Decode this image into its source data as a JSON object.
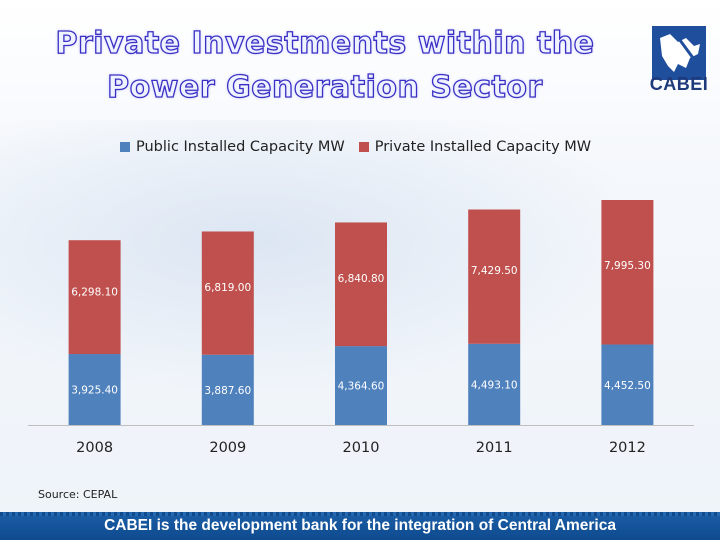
{
  "title": "Private Investments within the Power Generation Sector",
  "logo": {
    "text": "CABEI",
    "icon": "cabei-map-icon"
  },
  "colors": {
    "public": "#4f81bd",
    "private": "#c0504d",
    "title_outline": "#3b2fc4",
    "footer_bg": "#1b5fa8"
  },
  "source": "Source: CEPAL",
  "footer": "CABEI is the development bank for the integration of Central America",
  "chart_data": {
    "type": "bar",
    "stacked": true,
    "title": "",
    "xlabel": "",
    "ylabel": "",
    "grid": false,
    "legend_position": "top",
    "categories": [
      "2008",
      "2009",
      "2010",
      "2011",
      "2012"
    ],
    "series": [
      {
        "name": "Public Installed Capacity MW",
        "values": [
          3925.4,
          3887.6,
          4364.6,
          4493.1,
          4452.5
        ],
        "labels": [
          "3,925.40",
          "3,887.60",
          "4,364.60",
          "4,493.10",
          "4,452.50"
        ]
      },
      {
        "name": "Private Installed Capacity MW",
        "values": [
          6298.1,
          6819.0,
          6840.8,
          7429.5,
          7995.3
        ],
        "labels": [
          "6,298.10",
          "6,819.00",
          "6,840.80",
          "7,429.50",
          "7,995.30"
        ]
      }
    ],
    "ylim": [
      0,
      12448
    ]
  }
}
